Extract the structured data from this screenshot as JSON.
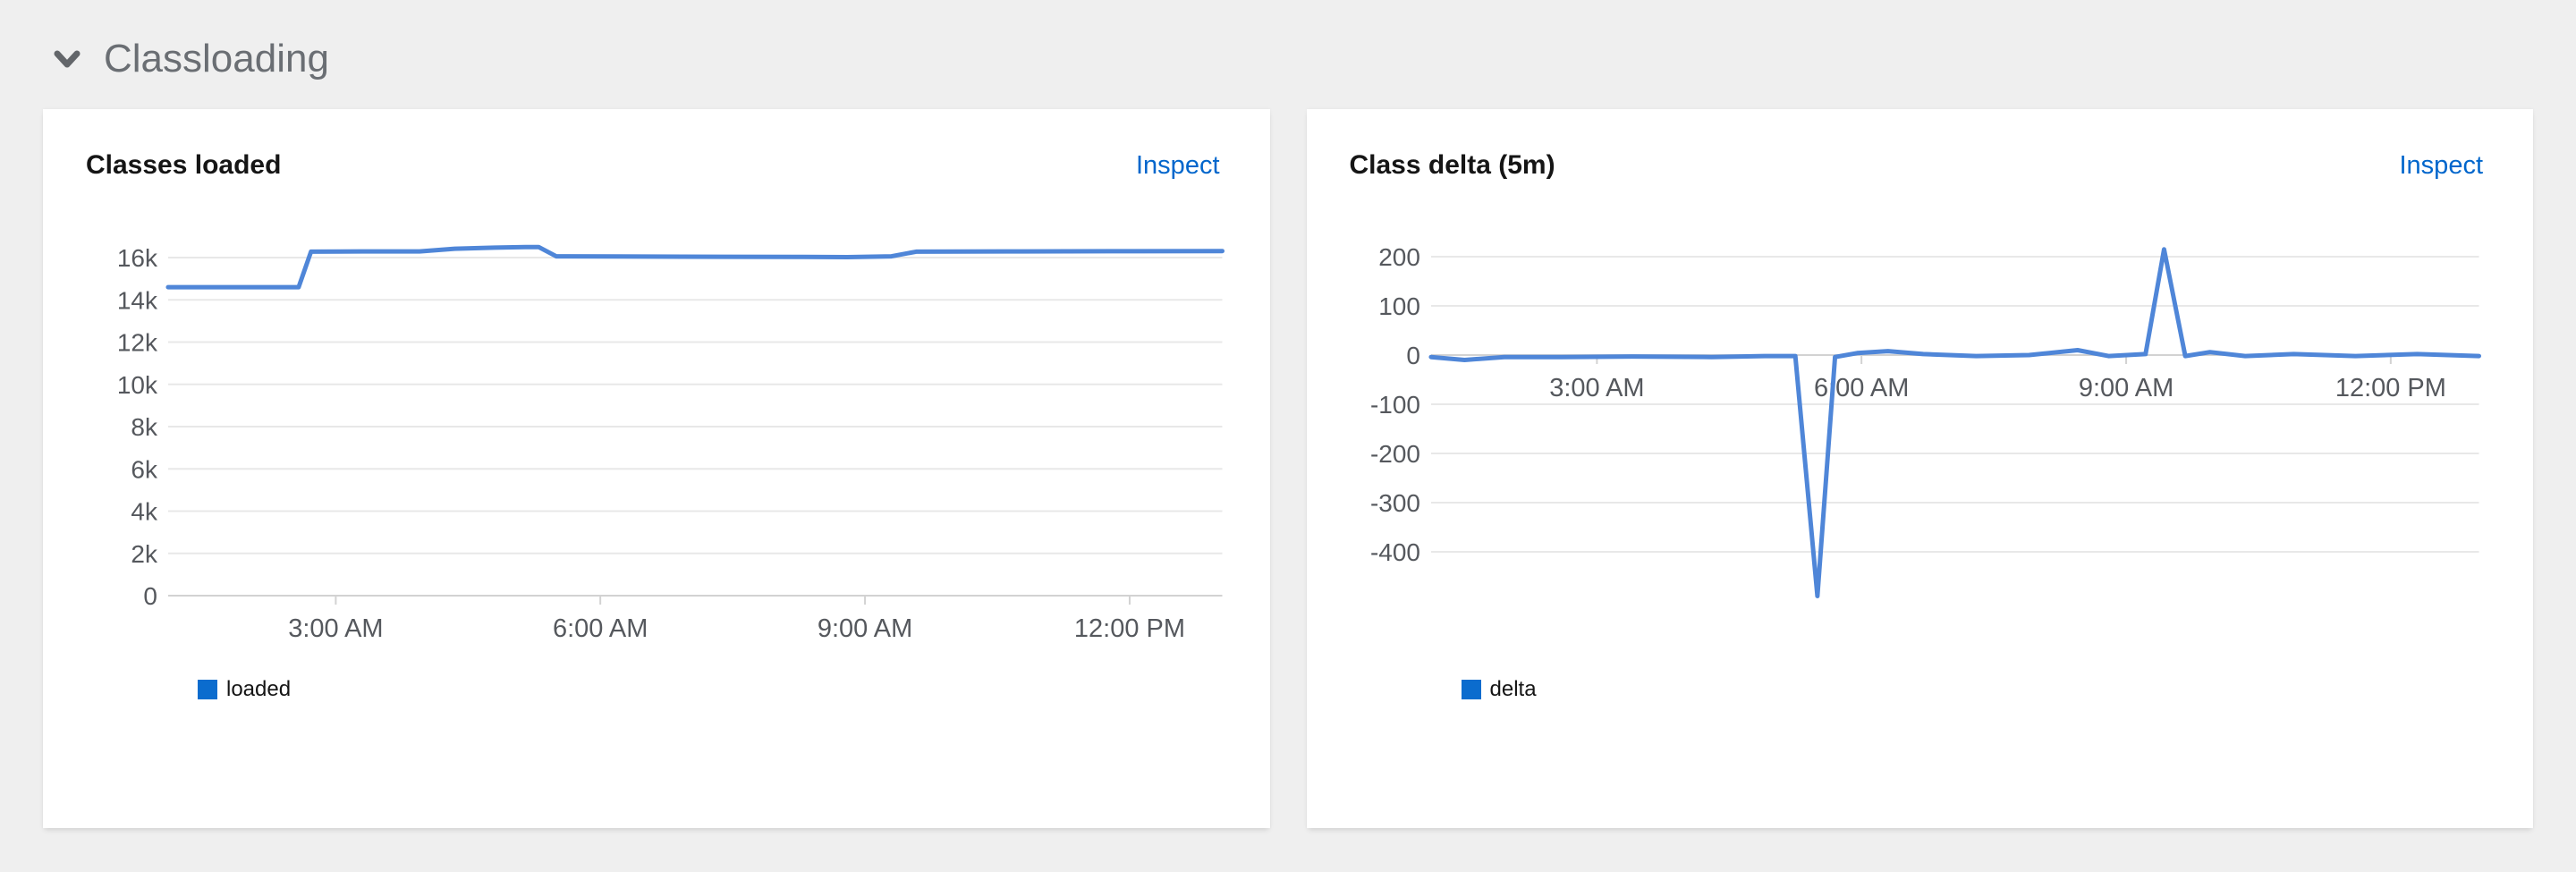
{
  "page": {
    "background_color": "#efefef"
  },
  "section": {
    "title": "Classloading",
    "chevron_icon": "chevron-down-icon",
    "expanded": true
  },
  "cards": [
    {
      "title": "Classes loaded",
      "inspect_label": "Inspect"
    },
    {
      "title": "Class delta (5m)",
      "inspect_label": "Inspect"
    }
  ],
  "colors": {
    "card_background": "#ffffff",
    "link": "#0066cc",
    "grid_line": "#e8e8e8",
    "axis_line": "#d2d2d2",
    "tick_mark": "#d2d2d2",
    "tick_label": "#55585d",
    "card_title_text": "#151515",
    "section_title_text": "#6a6e73",
    "legend_text": "#151515"
  },
  "chart_data": [
    {
      "type": "line",
      "title": "Classes loaded",
      "xlabel": "",
      "ylabel": "",
      "grid": true,
      "legend_position": "bottom-left",
      "x_range_hours": [
        1.1,
        13.05
      ],
      "y_range": [
        0,
        16900
      ],
      "x_ticks": [
        {
          "label": "3:00 AM",
          "hour": 3
        },
        {
          "label": "6:00 AM",
          "hour": 6
        },
        {
          "label": "9:00 AM",
          "hour": 9
        },
        {
          "label": "12:00 PM",
          "hour": 12
        }
      ],
      "y_ticks": [
        {
          "label": "16k",
          "value": 16000
        },
        {
          "label": "14k",
          "value": 14000
        },
        {
          "label": "12k",
          "value": 12000
        },
        {
          "label": "10k",
          "value": 10000
        },
        {
          "label": "8k",
          "value": 8000
        },
        {
          "label": "6k",
          "value": 6000
        },
        {
          "label": "4k",
          "value": 4000
        },
        {
          "label": "2k",
          "value": 2000
        },
        {
          "label": "0",
          "value": 0
        }
      ],
      "series": [
        {
          "name": "loaded",
          "color": "#4f86d8",
          "legend_color": "#0b6cce",
          "points": [
            [
              1.1,
              14600
            ],
            [
              2.58,
              14600
            ],
            [
              2.72,
              16280
            ],
            [
              3.3,
              16290
            ],
            [
              3.95,
              16290
            ],
            [
              4.35,
              16420
            ],
            [
              4.8,
              16470
            ],
            [
              5.15,
              16500
            ],
            [
              5.3,
              16500
            ],
            [
              5.5,
              16060
            ],
            [
              6.2,
              16050
            ],
            [
              7.4,
              16040
            ],
            [
              8.3,
              16030
            ],
            [
              8.8,
              16020
            ],
            [
              9.3,
              16060
            ],
            [
              9.58,
              16280
            ],
            [
              10.6,
              16290
            ],
            [
              11.8,
              16300
            ],
            [
              13.05,
              16310
            ]
          ]
        }
      ]
    },
    {
      "type": "line",
      "title": "Class delta (5m)",
      "xlabel": "",
      "ylabel": "",
      "grid": true,
      "legend_position": "bottom-left",
      "x_range_hours": [
        1.12,
        13.0
      ],
      "y_range": [
        -500,
        230
      ],
      "x_ticks": [
        {
          "label": "3:00 AM",
          "hour": 3
        },
        {
          "label": "6:00 AM",
          "hour": 6
        },
        {
          "label": "9:00 AM",
          "hour": 9
        },
        {
          "label": "12:00 PM",
          "hour": 12
        }
      ],
      "y_ticks": [
        {
          "label": "200",
          "value": 200
        },
        {
          "label": "100",
          "value": 100
        },
        {
          "label": "0",
          "value": 0
        },
        {
          "label": "-100",
          "value": -100
        },
        {
          "label": "-200",
          "value": -200
        },
        {
          "label": "-300",
          "value": -300
        },
        {
          "label": "-400",
          "value": -400
        }
      ],
      "series": [
        {
          "name": "delta",
          "color": "#4f86d8",
          "legend_color": "#0b6cce",
          "points": [
            [
              1.12,
              -4
            ],
            [
              1.5,
              -10
            ],
            [
              1.95,
              -4
            ],
            [
              2.6,
              -4
            ],
            [
              3.4,
              -3
            ],
            [
              4.3,
              -4
            ],
            [
              4.9,
              -2
            ],
            [
              5.25,
              -2
            ],
            [
              5.5,
              -490
            ],
            [
              5.7,
              -4
            ],
            [
              5.95,
              4
            ],
            [
              6.3,
              8
            ],
            [
              6.7,
              2
            ],
            [
              7.3,
              -2
            ],
            [
              7.9,
              0
            ],
            [
              8.45,
              10
            ],
            [
              8.8,
              -2
            ],
            [
              9.22,
              2
            ],
            [
              9.43,
              215
            ],
            [
              9.67,
              -2
            ],
            [
              9.95,
              6
            ],
            [
              10.35,
              -2
            ],
            [
              10.9,
              2
            ],
            [
              11.6,
              -2
            ],
            [
              12.3,
              2
            ],
            [
              13.0,
              -2
            ]
          ]
        }
      ]
    }
  ]
}
